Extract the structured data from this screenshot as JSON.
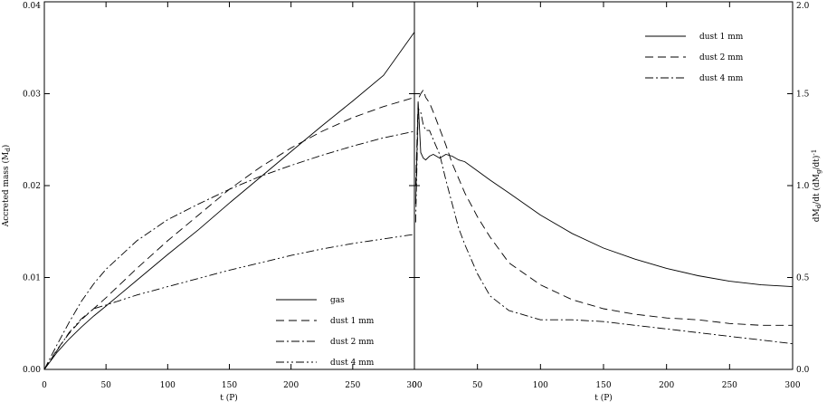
{
  "chart_data": [
    {
      "type": "line",
      "panel": "left",
      "xlabel": "t (P)",
      "ylabel": "Accreted mass (M",
      "ylabel_sub": "d",
      "ylabel_close": ")",
      "xlim": [
        0,
        300
      ],
      "ylim": [
        0,
        0.04
      ],
      "xticks": [
        "0",
        "50",
        "100",
        "150",
        "200",
        "250",
        "300"
      ],
      "yticks": [
        "0.00",
        "0.01",
        "0.02",
        "0.03",
        "0.04"
      ],
      "grid": false,
      "legend_position": "bottom-right",
      "series": [
        {
          "name": "gas",
          "dash": "solid",
          "x": [
            0,
            5,
            10,
            20,
            30,
            40,
            50,
            75,
            100,
            125,
            150,
            175,
            200,
            225,
            250,
            275,
            300
          ],
          "y": [
            0,
            0.0009,
            0.0018,
            0.0033,
            0.0046,
            0.0058,
            0.0069,
            0.0097,
            0.0125,
            0.0152,
            0.0181,
            0.0209,
            0.0237,
            0.0265,
            0.0292,
            0.032,
            0.0367
          ]
        },
        {
          "name": "dust 1 mm",
          "dash": "dashed",
          "x": [
            0,
            5,
            10,
            20,
            30,
            40,
            50,
            75,
            100,
            125,
            150,
            175,
            200,
            225,
            250,
            275,
            300
          ],
          "y": [
            0,
            0.001,
            0.0021,
            0.0039,
            0.0054,
            0.0066,
            0.0078,
            0.011,
            0.014,
            0.0168,
            0.0196,
            0.022,
            0.0241,
            0.0259,
            0.0274,
            0.0286,
            0.0296
          ]
        },
        {
          "name": "dust 2 mm",
          "dash": "dash-dot",
          "x": [
            0,
            5,
            10,
            20,
            30,
            40,
            50,
            75,
            100,
            125,
            150,
            175,
            200,
            225,
            250,
            275,
            300
          ],
          "y": [
            0,
            0.0013,
            0.0026,
            0.0051,
            0.0074,
            0.0093,
            0.0109,
            0.014,
            0.0163,
            0.018,
            0.0196,
            0.021,
            0.0222,
            0.0233,
            0.0243,
            0.0252,
            0.0259
          ]
        },
        {
          "name": "dust 4 mm",
          "dash": "dash-dot-dot",
          "x": [
            0,
            5,
            10,
            20,
            30,
            40,
            50,
            75,
            100,
            125,
            150,
            175,
            200,
            225,
            250,
            275,
            300
          ],
          "y": [
            0,
            0.001,
            0.002,
            0.004,
            0.0055,
            0.0066,
            0.007,
            0.0081,
            0.009,
            0.0099,
            0.0108,
            0.0116,
            0.0124,
            0.0131,
            0.0137,
            0.0142,
            0.0147
          ]
        }
      ]
    },
    {
      "type": "line",
      "panel": "right",
      "xlabel": "t (P)",
      "ylabel": "dM",
      "ylabel_sub1": "d",
      "ylabel_mid": "/dt (dM",
      "ylabel_sub2": "g",
      "ylabel_close": "/dt)",
      "ylabel_sup": "-1",
      "xlim": [
        0,
        300
      ],
      "ylim": [
        0,
        2.0
      ],
      "xticks": [
        "0",
        "50",
        "100",
        "150",
        "200",
        "250",
        "300"
      ],
      "yticks": [
        "0.0",
        "0.5",
        "1.0",
        "1.5",
        "2.0"
      ],
      "grid": false,
      "legend_position": "top-right",
      "series": [
        {
          "name": "dust 1 mm",
          "dash": "solid",
          "x": [
            1,
            3,
            5,
            7,
            9,
            12,
            15,
            20,
            25,
            30,
            35,
            40,
            50,
            60,
            75,
            100,
            125,
            150,
            175,
            200,
            225,
            250,
            275,
            300
          ],
          "y": [
            0.9,
            1.45,
            1.18,
            1.15,
            1.14,
            1.16,
            1.17,
            1.15,
            1.17,
            1.16,
            1.14,
            1.13,
            1.08,
            1.03,
            0.96,
            0.84,
            0.74,
            0.66,
            0.6,
            0.55,
            0.51,
            0.48,
            0.46,
            0.45
          ]
        },
        {
          "name": "dust 2 mm",
          "dash": "dashed",
          "x": [
            1,
            3,
            5,
            7,
            9,
            12,
            15,
            20,
            25,
            30,
            35,
            40,
            50,
            60,
            75,
            100,
            125,
            150,
            175,
            200,
            225,
            250,
            275,
            300
          ],
          "y": [
            1.0,
            1.47,
            1.5,
            1.52,
            1.48,
            1.45,
            1.4,
            1.31,
            1.22,
            1.12,
            1.04,
            0.96,
            0.83,
            0.72,
            0.58,
            0.46,
            0.38,
            0.33,
            0.3,
            0.28,
            0.27,
            0.25,
            0.24,
            0.24
          ]
        },
        {
          "name": "dust 4 mm",
          "dash": "dash-dot",
          "x": [
            1,
            3,
            5,
            7,
            9,
            12,
            15,
            20,
            25,
            30,
            35,
            40,
            50,
            60,
            75,
            100,
            125,
            150,
            175,
            200,
            225,
            250,
            275,
            300
          ],
          "y": [
            0.8,
            1.42,
            1.4,
            1.33,
            1.3,
            1.3,
            1.25,
            1.17,
            1.03,
            0.9,
            0.77,
            0.68,
            0.52,
            0.4,
            0.32,
            0.27,
            0.27,
            0.26,
            0.24,
            0.22,
            0.2,
            0.18,
            0.16,
            0.14
          ]
        }
      ]
    }
  ]
}
